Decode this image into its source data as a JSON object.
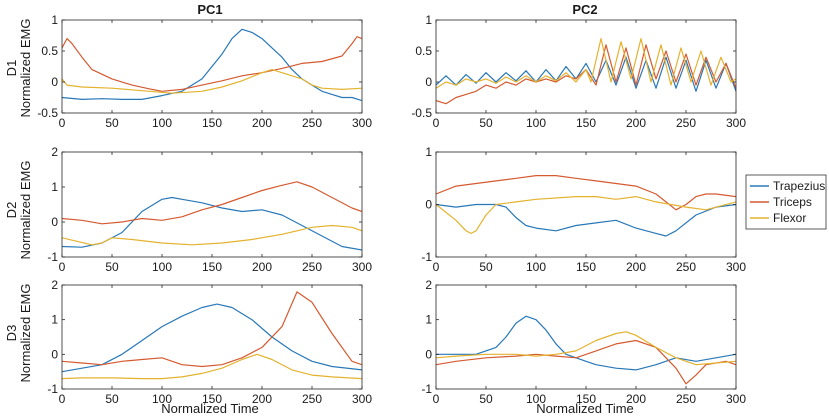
{
  "chart_data": {
    "type": "line",
    "x_range": [
      0,
      300
    ],
    "x_ticks": [
      "0",
      "50",
      "100",
      "150",
      "200",
      "250",
      "300"
    ],
    "xlabel": "Normalized Time",
    "ylabel": "Normalized EMG",
    "column_titles": [
      "PC1",
      "PC2"
    ],
    "row_labels": [
      "D1",
      "D2",
      "D3"
    ],
    "legend": [
      "Trapezius",
      "Triceps",
      "Flexor"
    ],
    "colors": {
      "Trapezius": "#2878b8",
      "Triceps": "#d55a30",
      "Flexor": "#e3b22f"
    },
    "panels": [
      {
        "id": "D1-PC1",
        "ylim": [
          -0.5,
          1
        ],
        "y_ticks": [
          "-0.5",
          "0",
          "0.5",
          "1"
        ],
        "series": [
          {
            "name": "Trapezius",
            "x": [
              0,
              20,
              40,
              60,
              80,
              100,
              120,
              140,
              160,
              170,
              180,
              190,
              200,
              210,
              220,
              230,
              240,
              250,
              260,
              270,
              280,
              290,
              300
            ],
            "y": [
              -0.25,
              -0.28,
              -0.27,
              -0.28,
              -0.28,
              -0.22,
              -0.15,
              0.05,
              0.45,
              0.7,
              0.85,
              0.8,
              0.7,
              0.55,
              0.4,
              0.2,
              0.05,
              -0.05,
              -0.15,
              -0.2,
              -0.25,
              -0.25,
              -0.3
            ]
          },
          {
            "name": "Triceps",
            "x": [
              0,
              5,
              10,
              20,
              30,
              50,
              70,
              90,
              100,
              120,
              140,
              160,
              180,
              200,
              220,
              240,
              260,
              280,
              290,
              295,
              300
            ],
            "y": [
              0.55,
              0.7,
              0.62,
              0.4,
              0.2,
              0.05,
              -0.05,
              -0.12,
              -0.15,
              -0.12,
              -0.05,
              0.02,
              0.1,
              0.15,
              0.22,
              0.3,
              0.33,
              0.42,
              0.62,
              0.73,
              0.7
            ]
          },
          {
            "name": "Flexor",
            "x": [
              0,
              5,
              20,
              50,
              80,
              110,
              140,
              160,
              180,
              200,
              210,
              220,
              230,
              240,
              250,
              260,
              280,
              300
            ],
            "y": [
              0.05,
              -0.05,
              -0.08,
              -0.1,
              -0.14,
              -0.18,
              -0.15,
              -0.08,
              0.02,
              0.15,
              0.2,
              0.15,
              0.1,
              0.05,
              -0.05,
              -0.1,
              -0.12,
              -0.1
            ]
          }
        ]
      },
      {
        "id": "D1-PC2",
        "ylim": [
          -0.5,
          1
        ],
        "y_ticks": [
          "-0.5",
          "0",
          "0.5",
          "1"
        ],
        "series": [
          {
            "name": "Trapezius",
            "x": [
              0,
              10,
              20,
              30,
              40,
              50,
              60,
              70,
              80,
              90,
              100,
              110,
              120,
              130,
              140,
              150,
              160,
              170,
              180,
              190,
              200,
              210,
              220,
              230,
              240,
              250,
              260,
              270,
              280,
              290,
              300
            ],
            "y": [
              -0.05,
              0.1,
              -0.05,
              0.12,
              -0.02,
              0.15,
              0.0,
              0.15,
              0.02,
              0.18,
              0.0,
              0.2,
              0.02,
              0.25,
              0.05,
              0.3,
              0.0,
              0.35,
              -0.05,
              0.4,
              -0.1,
              0.35,
              -0.1,
              0.4,
              -0.1,
              0.35,
              -0.15,
              0.35,
              -0.1,
              0.3,
              -0.15
            ]
          },
          {
            "name": "Triceps",
            "x": [
              0,
              10,
              20,
              30,
              40,
              50,
              60,
              70,
              80,
              90,
              100,
              110,
              120,
              130,
              140,
              150,
              160,
              170,
              180,
              190,
              200,
              210,
              220,
              230,
              240,
              250,
              260,
              270,
              280,
              290,
              300
            ],
            "y": [
              -0.3,
              -0.35,
              -0.25,
              -0.2,
              -0.15,
              -0.05,
              -0.1,
              0.0,
              -0.05,
              0.05,
              0.0,
              0.05,
              0.0,
              0.1,
              0.05,
              0.2,
              -0.05,
              0.6,
              0.0,
              0.55,
              -0.05,
              0.6,
              0.05,
              0.5,
              0.0,
              0.45,
              -0.05,
              0.4,
              0.0,
              0.3,
              -0.1
            ]
          },
          {
            "name": "Flexor",
            "x": [
              0,
              10,
              20,
              30,
              40,
              50,
              60,
              70,
              80,
              90,
              100,
              110,
              120,
              130,
              140,
              150,
              155,
              165,
              175,
              185,
              195,
              205,
              215,
              225,
              235,
              245,
              255,
              265,
              275,
              285,
              295,
              300
            ],
            "y": [
              -0.1,
              0.0,
              -0.05,
              0.05,
              0.0,
              0.05,
              -0.02,
              0.08,
              0.0,
              0.1,
              0.0,
              0.1,
              0.02,
              0.15,
              0.0,
              0.2,
              0.0,
              0.7,
              0.0,
              0.65,
              0.05,
              0.7,
              0.0,
              0.6,
              -0.05,
              0.55,
              0.0,
              0.5,
              -0.05,
              0.4,
              0.0,
              0.05
            ]
          }
        ]
      },
      {
        "id": "D2-PC1",
        "ylim": [
          -1,
          2
        ],
        "y_ticks": [
          "-1",
          "0",
          "1",
          "2"
        ],
        "series": [
          {
            "name": "Trapezius",
            "x": [
              0,
              20,
              40,
              60,
              80,
              100,
              110,
              120,
              140,
              160,
              180,
              200,
              220,
              240,
              260,
              280,
              300
            ],
            "y": [
              -0.7,
              -0.72,
              -0.6,
              -0.3,
              0.3,
              0.65,
              0.7,
              0.65,
              0.55,
              0.4,
              0.3,
              0.35,
              0.2,
              -0.1,
              -0.4,
              -0.7,
              -0.8
            ]
          },
          {
            "name": "Triceps",
            "x": [
              0,
              20,
              40,
              60,
              80,
              100,
              120,
              140,
              160,
              180,
              200,
              220,
              235,
              250,
              270,
              290,
              300
            ],
            "y": [
              0.1,
              0.05,
              -0.05,
              0.0,
              0.1,
              0.05,
              0.15,
              0.35,
              0.5,
              0.7,
              0.9,
              1.05,
              1.15,
              1.0,
              0.7,
              0.4,
              0.3
            ]
          },
          {
            "name": "Flexor",
            "x": [
              0,
              15,
              30,
              40,
              50,
              70,
              100,
              130,
              160,
              190,
              220,
              250,
              270,
              290,
              300
            ],
            "y": [
              -0.45,
              -0.55,
              -0.65,
              -0.6,
              -0.45,
              -0.5,
              -0.6,
              -0.65,
              -0.6,
              -0.5,
              -0.35,
              -0.15,
              -0.1,
              -0.15,
              -0.25
            ]
          }
        ]
      },
      {
        "id": "D2-PC2",
        "ylim": [
          -1,
          1
        ],
        "y_ticks": [
          "-1",
          "0",
          "1"
        ],
        "series": [
          {
            "name": "Trapezius",
            "x": [
              0,
              20,
              40,
              60,
              70,
              80,
              90,
              100,
              120,
              140,
              160,
              180,
              200,
              220,
              230,
              240,
              260,
              280,
              300
            ],
            "y": [
              0.0,
              -0.05,
              0.0,
              0.0,
              -0.05,
              -0.25,
              -0.4,
              -0.45,
              -0.5,
              -0.4,
              -0.35,
              -0.3,
              -0.45,
              -0.55,
              -0.6,
              -0.5,
              -0.2,
              -0.05,
              0.0
            ]
          },
          {
            "name": "Triceps",
            "x": [
              0,
              20,
              40,
              60,
              80,
              100,
              120,
              140,
              160,
              180,
              200,
              220,
              230,
              240,
              250,
              260,
              270,
              280,
              300
            ],
            "y": [
              0.2,
              0.35,
              0.4,
              0.45,
              0.5,
              0.55,
              0.55,
              0.5,
              0.45,
              0.4,
              0.35,
              0.2,
              0.05,
              -0.1,
              0.0,
              0.15,
              0.2,
              0.2,
              0.15
            ]
          },
          {
            "name": "Flexor",
            "x": [
              0,
              20,
              30,
              35,
              40,
              50,
              60,
              80,
              100,
              140,
              160,
              180,
              200,
              220,
              250,
              270,
              300
            ],
            "y": [
              0.0,
              -0.3,
              -0.5,
              -0.55,
              -0.5,
              -0.2,
              0.0,
              0.05,
              0.1,
              0.15,
              0.15,
              0.1,
              0.15,
              0.05,
              -0.05,
              -0.1,
              0.05
            ]
          }
        ]
      },
      {
        "id": "D3-PC1",
        "ylim": [
          -1,
          2
        ],
        "y_ticks": [
          "-1",
          "0",
          "1",
          "2"
        ],
        "series": [
          {
            "name": "Trapezius",
            "x": [
              0,
              20,
              40,
              60,
              80,
              100,
              120,
              140,
              155,
              170,
              190,
              210,
              230,
              250,
              270,
              300
            ],
            "y": [
              -0.5,
              -0.4,
              -0.3,
              0.0,
              0.4,
              0.8,
              1.1,
              1.35,
              1.45,
              1.35,
              1.0,
              0.5,
              0.1,
              -0.2,
              -0.35,
              -0.45
            ]
          },
          {
            "name": "Triceps",
            "x": [
              0,
              20,
              40,
              60,
              80,
              100,
              120,
              140,
              160,
              180,
              200,
              220,
              235,
              250,
              270,
              290,
              300
            ],
            "y": [
              -0.2,
              -0.25,
              -0.3,
              -0.2,
              -0.15,
              -0.1,
              -0.3,
              -0.35,
              -0.3,
              -0.1,
              0.2,
              0.8,
              1.8,
              1.5,
              0.6,
              -0.2,
              -0.3
            ]
          },
          {
            "name": "Flexor",
            "x": [
              0,
              20,
              50,
              80,
              100,
              120,
              140,
              160,
              180,
              195,
              210,
              230,
              250,
              270,
              300
            ],
            "y": [
              -0.7,
              -0.68,
              -0.68,
              -0.7,
              -0.7,
              -0.65,
              -0.55,
              -0.4,
              -0.15,
              0.0,
              -0.15,
              -0.45,
              -0.6,
              -0.65,
              -0.7
            ]
          }
        ]
      },
      {
        "id": "D3-PC2",
        "ylim": [
          -1,
          2
        ],
        "y_ticks": [
          "-1",
          "0",
          "1",
          "2"
        ],
        "series": [
          {
            "name": "Trapezius",
            "x": [
              0,
              20,
              40,
              60,
              70,
              80,
              90,
              100,
              110,
              120,
              130,
              140,
              150,
              160,
              180,
              200,
              220,
              240,
              260,
              280,
              300
            ],
            "y": [
              0.0,
              0.0,
              0.0,
              0.2,
              0.5,
              0.9,
              1.1,
              1.0,
              0.7,
              0.3,
              0.0,
              -0.1,
              -0.2,
              -0.3,
              -0.4,
              -0.45,
              -0.3,
              -0.1,
              -0.2,
              -0.1,
              0.0
            ]
          },
          {
            "name": "Triceps",
            "x": [
              0,
              20,
              50,
              80,
              100,
              120,
              140,
              160,
              180,
              200,
              220,
              240,
              250,
              260,
              270,
              290,
              300
            ],
            "y": [
              -0.3,
              -0.2,
              -0.1,
              -0.05,
              0.0,
              -0.05,
              -0.1,
              0.1,
              0.3,
              0.4,
              0.2,
              -0.4,
              -0.85,
              -0.6,
              -0.3,
              -0.2,
              -0.3
            ]
          },
          {
            "name": "Flexor",
            "x": [
              0,
              20,
              50,
              80,
              100,
              120,
              140,
              160,
              180,
              190,
              200,
              220,
              240,
              260,
              280,
              300
            ],
            "y": [
              -0.1,
              -0.05,
              0.0,
              0.0,
              -0.05,
              0.0,
              0.1,
              0.4,
              0.6,
              0.65,
              0.55,
              0.2,
              -0.1,
              -0.3,
              -0.25,
              -0.2
            ]
          }
        ]
      }
    ]
  }
}
